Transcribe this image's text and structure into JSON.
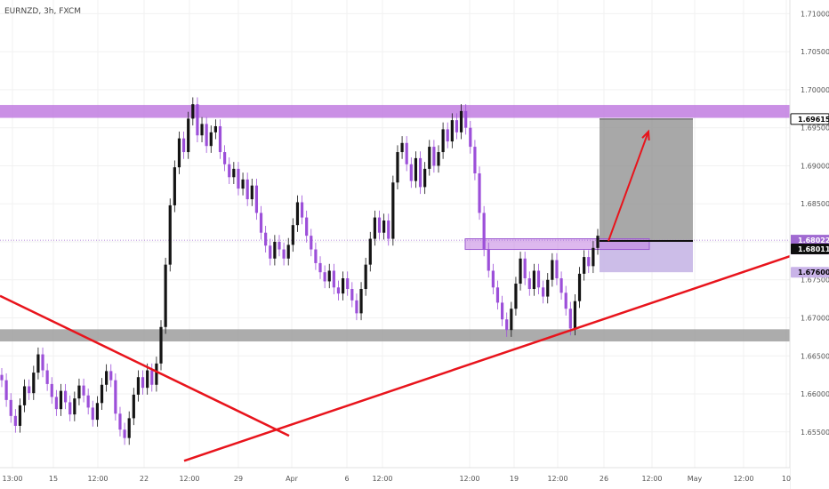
{
  "header": {
    "symbol": "EURNZD, 3h, FXCM"
  },
  "colors": {
    "background": "#ffffff",
    "bull_candle": "#141414",
    "bear_candle": "#9c4fd9",
    "resistance_zone": "#c17de0",
    "support_zone": "#9e9e9e",
    "trendline": "#e8141c",
    "target_box": "#8f8f8f",
    "stop_box": "#c7b6e6",
    "current_price_tag": "#a06ad1",
    "dark_tag": "#0e0e0e",
    "grid": "#f1f1f1",
    "axis_text": "#555555"
  },
  "chart_data": {
    "type": "candlestick",
    "title": "EURNZD, 3h, FXCM",
    "xlabel": "",
    "ylabel": "",
    "ylim": [
      1.6503,
      1.7118
    ],
    "grid": true,
    "y_ticks": [
      "1.65500",
      "1.66000",
      "1.66500",
      "1.67000",
      "1.67500",
      "1.68000",
      "1.68500",
      "1.69000",
      "1.69500",
      "1.70000",
      "1.70500",
      "1.71000"
    ],
    "x_ticks": [
      "13:00",
      "15",
      "12:00",
      "22",
      "12:00",
      "29",
      "Apr",
      "6",
      "12:00",
      "12:00",
      "19",
      "12:00",
      "26",
      "12:00",
      "May",
      "12:00",
      "10"
    ],
    "candles": [
      {
        "o": 1.6625,
        "c": 1.6618
      },
      {
        "o": 1.6618,
        "c": 1.6592
      },
      {
        "o": 1.6592,
        "c": 1.6571
      },
      {
        "o": 1.6571,
        "c": 1.6558
      },
      {
        "o": 1.6558,
        "c": 1.6585
      },
      {
        "o": 1.6585,
        "c": 1.661
      },
      {
        "o": 1.661,
        "c": 1.6601
      },
      {
        "o": 1.6601,
        "c": 1.6628
      },
      {
        "o": 1.6628,
        "c": 1.6652
      },
      {
        "o": 1.6652,
        "c": 1.6631
      },
      {
        "o": 1.6631,
        "c": 1.6613
      },
      {
        "o": 1.6613,
        "c": 1.6596
      },
      {
        "o": 1.6596,
        "c": 1.658
      },
      {
        "o": 1.658,
        "c": 1.6604
      },
      {
        "o": 1.6604,
        "c": 1.6589
      },
      {
        "o": 1.6589,
        "c": 1.6573
      },
      {
        "o": 1.6573,
        "c": 1.6594
      },
      {
        "o": 1.6594,
        "c": 1.6611
      },
      {
        "o": 1.6611,
        "c": 1.6598
      },
      {
        "o": 1.6598,
        "c": 1.6582
      },
      {
        "o": 1.6582,
        "c": 1.6566
      },
      {
        "o": 1.6566,
        "c": 1.6588
      },
      {
        "o": 1.6588,
        "c": 1.6612
      },
      {
        "o": 1.6612,
        "c": 1.663
      },
      {
        "o": 1.663,
        "c": 1.6618
      },
      {
        "o": 1.6618,
        "c": 1.6574
      },
      {
        "o": 1.6574,
        "c": 1.6553
      },
      {
        "o": 1.6553,
        "c": 1.6542
      },
      {
        "o": 1.6542,
        "c": 1.6568
      },
      {
        "o": 1.6568,
        "c": 1.6599
      },
      {
        "o": 1.6599,
        "c": 1.6622
      },
      {
        "o": 1.6622,
        "c": 1.6608
      },
      {
        "o": 1.6608,
        "c": 1.6631
      },
      {
        "o": 1.6631,
        "c": 1.6612
      },
      {
        "o": 1.6612,
        "c": 1.664
      },
      {
        "o": 1.664,
        "c": 1.6688
      },
      {
        "o": 1.6688,
        "c": 1.677
      },
      {
        "o": 1.677,
        "c": 1.6848
      },
      {
        "o": 1.6848,
        "c": 1.6898
      },
      {
        "o": 1.6898,
        "c": 1.6936
      },
      {
        "o": 1.6936,
        "c": 1.6918
      },
      {
        "o": 1.6918,
        "c": 1.6962
      },
      {
        "o": 1.6962,
        "c": 1.6981
      },
      {
        "o": 1.6981,
        "c": 1.694
      },
      {
        "o": 1.694,
        "c": 1.6955
      },
      {
        "o": 1.6955,
        "c": 1.6926
      },
      {
        "o": 1.6926,
        "c": 1.6944
      },
      {
        "o": 1.6944,
        "c": 1.6952
      },
      {
        "o": 1.6952,
        "c": 1.6918
      },
      {
        "o": 1.6918,
        "c": 1.6902
      },
      {
        "o": 1.6902,
        "c": 1.6885
      },
      {
        "o": 1.6885,
        "c": 1.6896
      },
      {
        "o": 1.6896,
        "c": 1.687
      },
      {
        "o": 1.687,
        "c": 1.6882
      },
      {
        "o": 1.6882,
        "c": 1.6856
      },
      {
        "o": 1.6856,
        "c": 1.6874
      },
      {
        "o": 1.6874,
        "c": 1.6838
      },
      {
        "o": 1.6838,
        "c": 1.6812
      },
      {
        "o": 1.6812,
        "c": 1.6795
      },
      {
        "o": 1.6795,
        "c": 1.6778
      },
      {
        "o": 1.6778,
        "c": 1.68
      },
      {
        "o": 1.68,
        "c": 1.679
      },
      {
        "o": 1.679,
        "c": 1.6778
      },
      {
        "o": 1.6778,
        "c": 1.6796
      },
      {
        "o": 1.6796,
        "c": 1.6822
      },
      {
        "o": 1.6822,
        "c": 1.6852
      },
      {
        "o": 1.6852,
        "c": 1.6832
      },
      {
        "o": 1.6832,
        "c": 1.6808
      },
      {
        "o": 1.6808,
        "c": 1.679
      },
      {
        "o": 1.679,
        "c": 1.6772
      },
      {
        "o": 1.6772,
        "c": 1.676
      },
      {
        "o": 1.676,
        "c": 1.6748
      },
      {
        "o": 1.6748,
        "c": 1.6762
      },
      {
        "o": 1.6762,
        "c": 1.674
      },
      {
        "o": 1.674,
        "c": 1.6732
      },
      {
        "o": 1.6732,
        "c": 1.6752
      },
      {
        "o": 1.6752,
        "c": 1.6738
      },
      {
        "o": 1.6738,
        "c": 1.6723
      },
      {
        "o": 1.6723,
        "c": 1.6706
      },
      {
        "o": 1.6706,
        "c": 1.6738
      },
      {
        "o": 1.6738,
        "c": 1.677
      },
      {
        "o": 1.677,
        "c": 1.6804
      },
      {
        "o": 1.6804,
        "c": 1.6832
      },
      {
        "o": 1.6832,
        "c": 1.6812
      },
      {
        "o": 1.6812,
        "c": 1.6828
      },
      {
        "o": 1.6828,
        "c": 1.6804
      },
      {
        "o": 1.6804,
        "c": 1.6878
      },
      {
        "o": 1.6878,
        "c": 1.6918
      },
      {
        "o": 1.6918,
        "c": 1.693
      },
      {
        "o": 1.693,
        "c": 1.6902
      },
      {
        "o": 1.6902,
        "c": 1.688
      },
      {
        "o": 1.688,
        "c": 1.691
      },
      {
        "o": 1.691,
        "c": 1.6872
      },
      {
        "o": 1.6872,
        "c": 1.6896
      },
      {
        "o": 1.6896,
        "c": 1.6925
      },
      {
        "o": 1.6925,
        "c": 1.69
      },
      {
        "o": 1.69,
        "c": 1.6918
      },
      {
        "o": 1.6918,
        "c": 1.6948
      },
      {
        "o": 1.6948,
        "c": 1.6932
      },
      {
        "o": 1.6932,
        "c": 1.696
      },
      {
        "o": 1.696,
        "c": 1.6944
      },
      {
        "o": 1.6944,
        "c": 1.6972
      },
      {
        "o": 1.6972,
        "c": 1.695
      },
      {
        "o": 1.695,
        "c": 1.6925
      },
      {
        "o": 1.6925,
        "c": 1.689
      },
      {
        "o": 1.689,
        "c": 1.6838
      },
      {
        "o": 1.6838,
        "c": 1.679
      },
      {
        "o": 1.679,
        "c": 1.6762
      },
      {
        "o": 1.6762,
        "c": 1.674
      },
      {
        "o": 1.674,
        "c": 1.672
      },
      {
        "o": 1.672,
        "c": 1.6698
      },
      {
        "o": 1.6698,
        "c": 1.6684
      },
      {
        "o": 1.6684,
        "c": 1.6712
      },
      {
        "o": 1.6712,
        "c": 1.6745
      },
      {
        "o": 1.6745,
        "c": 1.6778
      },
      {
        "o": 1.6778,
        "c": 1.6752
      },
      {
        "o": 1.6752,
        "c": 1.6738
      },
      {
        "o": 1.6738,
        "c": 1.6762
      },
      {
        "o": 1.6762,
        "c": 1.674
      },
      {
        "o": 1.674,
        "c": 1.6728
      },
      {
        "o": 1.6728,
        "c": 1.675
      },
      {
        "o": 1.675,
        "c": 1.6776
      },
      {
        "o": 1.6776,
        "c": 1.6752
      },
      {
        "o": 1.6752,
        "c": 1.6733
      },
      {
        "o": 1.6733,
        "c": 1.6712
      },
      {
        "o": 1.6712,
        "c": 1.6686
      },
      {
        "o": 1.6686,
        "c": 1.6722
      },
      {
        "o": 1.6722,
        "c": 1.6758
      },
      {
        "o": 1.6758,
        "c": 1.678
      },
      {
        "o": 1.678,
        "c": 1.6768
      },
      {
        "o": 1.6768,
        "c": 1.6792
      },
      {
        "o": 1.6792,
        "c": 1.6808
      }
    ],
    "resistance_zone": {
      "from": 1.6963,
      "to": 1.698
    },
    "support_zone": {
      "from": 1.6669,
      "to": 1.6685
    },
    "entry_zone": {
      "from": 1.679,
      "to": 1.6804
    },
    "trade_setup": {
      "target": 1.69615,
      "entry": 1.68011,
      "stop": 1.676
    },
    "projection_arrow": {
      "from": 1.6801,
      "to": 1.6945
    },
    "trendlines": [
      {
        "name": "descending",
        "from": 1.6729,
        "to": 1.6545
      },
      {
        "name": "ascending",
        "from": 1.6512,
        "to": 1.6781
      }
    ],
    "current_price": 1.68022,
    "price_tags": {
      "target": "1.69615",
      "current": "1.68022",
      "countdown": "02:43:44",
      "entry": "1.68011",
      "stop": "1.67600"
    }
  }
}
